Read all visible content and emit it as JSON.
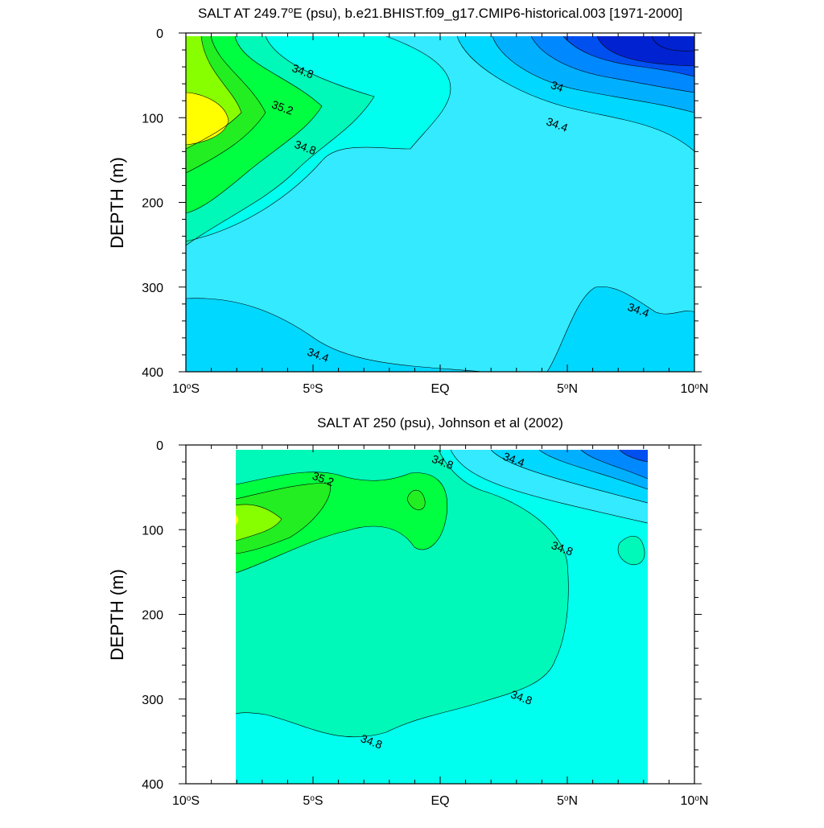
{
  "chart_data": [
    {
      "type": "contour",
      "title": "SALT AT 249.7°E (psu), b.e21.BHIST.f09_g17.CMIP6-historical.003 [1971-2000]",
      "title_parts": [
        "SALT AT 249.7",
        "o",
        "E (psu), b.e21.BHIST.f09_g17.CMIP6-historical.003 [1971-2000]"
      ],
      "xlabel": "",
      "ylabel": "DEPTH (m)",
      "xlim": [
        -10,
        10
      ],
      "ylim": [
        400,
        0
      ],
      "x_ticks": [
        {
          "value": -10,
          "num": "10",
          "sup": "o",
          "hemi": "S"
        },
        {
          "value": -5,
          "num": "5",
          "sup": "o",
          "hemi": "S"
        },
        {
          "value": 0,
          "num": "EQ",
          "sup": "",
          "hemi": ""
        },
        {
          "value": 5,
          "num": "5",
          "sup": "o",
          "hemi": "N"
        },
        {
          "value": 10,
          "num": "10",
          "sup": "o",
          "hemi": "N"
        }
      ],
      "y_ticks": [
        0,
        100,
        200,
        300,
        400
      ],
      "contour_labels": [
        {
          "text": "34.8",
          "lon": -5.4,
          "depth": 45
        },
        {
          "text": "35.2",
          "lon": -6.2,
          "depth": 88
        },
        {
          "text": "34.8",
          "lon": -5.3,
          "depth": 135
        },
        {
          "text": "34",
          "lon": 4.6,
          "depth": 63
        },
        {
          "text": "34.4",
          "lon": 4.6,
          "depth": 108
        },
        {
          "text": "34.4",
          "lon": 7.8,
          "depth": 327
        },
        {
          "text": "34.4",
          "lon": -4.8,
          "depth": 380
        }
      ]
    },
    {
      "type": "contour",
      "title": "SALT AT 250 (psu), Johnson et al (2002)",
      "title_parts": [
        "SALT AT 250 (psu), Johnson et al (2002)",
        "",
        ""
      ],
      "xlabel": "",
      "ylabel": "DEPTH (m)",
      "xlim": [
        -10,
        10
      ],
      "ylim": [
        400,
        0
      ],
      "data_extent_lon": [
        -8,
        8.2
      ],
      "data_extent_depth": [
        5,
        400
      ],
      "x_ticks": [
        {
          "value": -10,
          "num": "10",
          "sup": "o",
          "hemi": "S"
        },
        {
          "value": -5,
          "num": "5",
          "sup": "o",
          "hemi": "S"
        },
        {
          "value": 0,
          "num": "EQ",
          "sup": "",
          "hemi": ""
        },
        {
          "value": 5,
          "num": "5",
          "sup": "o",
          "hemi": "N"
        },
        {
          "value": 10,
          "num": "10",
          "sup": "o",
          "hemi": "N"
        }
      ],
      "y_ticks": [
        0,
        100,
        200,
        300,
        400
      ],
      "contour_labels": [
        {
          "text": "35.2",
          "lon": -4.6,
          "depth": 40
        },
        {
          "text": "34.8",
          "lon": 0.1,
          "depth": 20
        },
        {
          "text": "34.4",
          "lon": 2.9,
          "depth": 17
        },
        {
          "text": "34.8",
          "lon": 4.8,
          "depth": 122
        },
        {
          "text": "34.8",
          "lon": 3.2,
          "depth": 298
        },
        {
          "text": "34.8",
          "lon": -2.7,
          "depth": 350
        }
      ]
    }
  ],
  "colors": {
    "c33_6": "#0022d0",
    "c33_8": "#0050f0",
    "c34_0": "#0088ff",
    "c34_2": "#00b0ff",
    "c34_4": "#00d8ff",
    "c34_6": "#33eaff",
    "c34_8": "#00ffee",
    "c35_0": "#00f8b8",
    "c35_2": "#00ff40",
    "c35_4": "#22ee22",
    "c35_6": "#88ff00",
    "c35_8": "#ffff00"
  }
}
